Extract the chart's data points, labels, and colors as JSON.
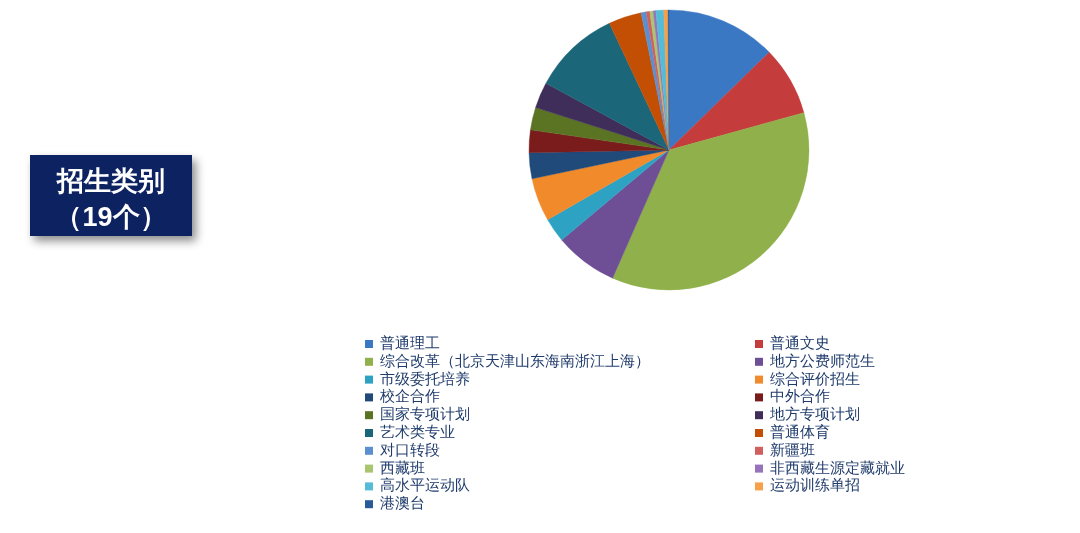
{
  "chart_data": {
    "type": "pie",
    "title": "招生类别",
    "subtitle": "（19个）",
    "categories": [
      "普通理工",
      "普通文史",
      "综合改革（北京天津山东海南浙江上海）",
      "地方公费师范生",
      "市级委托培养",
      "综合评价招生",
      "校企合作",
      "中外合作",
      "国家专项计划",
      "地方专项计划",
      "艺术类专业",
      "普通体育",
      "对口转段",
      "新疆班",
      "西藏班",
      "非西藏生源定藏就业",
      "高水平运动队",
      "运动训练单招",
      "港澳台"
    ],
    "values": [
      12.7,
      8.0,
      35.9,
      7.3,
      2.8,
      5.0,
      3.0,
      2.6,
      2.6,
      3.0,
      10.1,
      3.8,
      0.6,
      0.4,
      0.4,
      0.3,
      0.9,
      0.5,
      0.1
    ],
    "colors": [
      "#3b78c4",
      "#c43c3c",
      "#8fb04a",
      "#6e4f96",
      "#2ea2c3",
      "#f08a2a",
      "#1f4a7a",
      "#7a1c1c",
      "#5a7423",
      "#3f2d5a",
      "#1b6679",
      "#c24f04",
      "#5b8fd0",
      "#d06060",
      "#a9c56e",
      "#9673bb",
      "#55bcd8",
      "#f5a04a",
      "#2a5a9a"
    ],
    "legend": "bottom"
  }
}
